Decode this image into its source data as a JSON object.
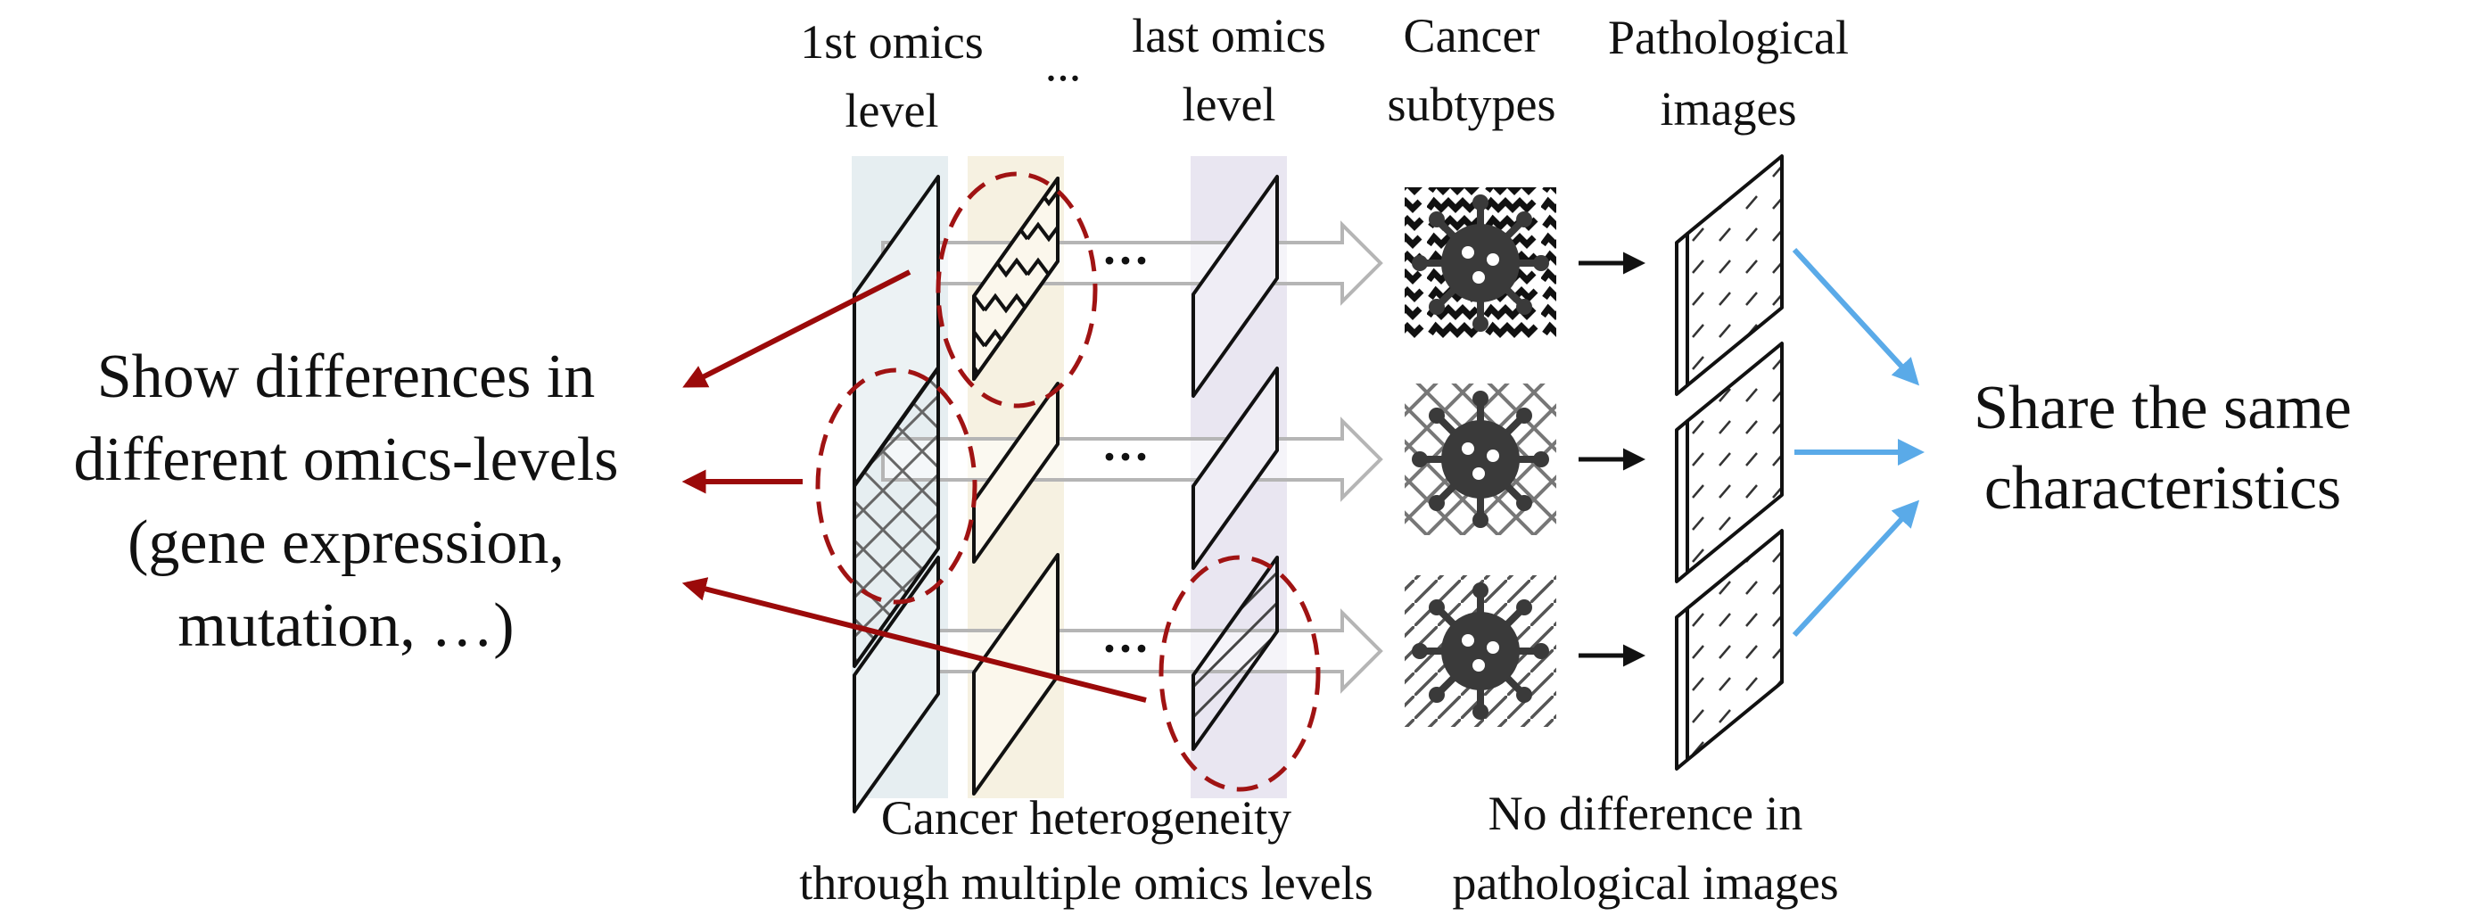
{
  "column_headers": {
    "first_omics": [
      "1st omics",
      "level"
    ],
    "ellipsis": "...",
    "last_omics": [
      "last omics",
      "level"
    ],
    "cancer_subtypes": [
      "Cancer",
      "subtypes"
    ],
    "pathological_images": [
      "Pathological",
      "images"
    ]
  },
  "left_note": [
    "Show differences in",
    "different omics-levels",
    "(gene expression,",
    "mutation, …)"
  ],
  "right_note": [
    "Share the same",
    "characteristics"
  ],
  "bottom_captions": {
    "heterogeneity": [
      "Cancer heterogeneity",
      "through multiple omics levels"
    ],
    "no_difference": [
      "No difference in",
      "pathological images"
    ]
  },
  "row_ellipsis": "···",
  "colors": {
    "red_arrow": "#9b0a0a",
    "blue_arrow": "#5aaae8",
    "first_strip": "#dde8ec",
    "second_strip": "#f4eedc",
    "last_strip": "#e5e2ee",
    "virus": "#3a3a3a"
  }
}
